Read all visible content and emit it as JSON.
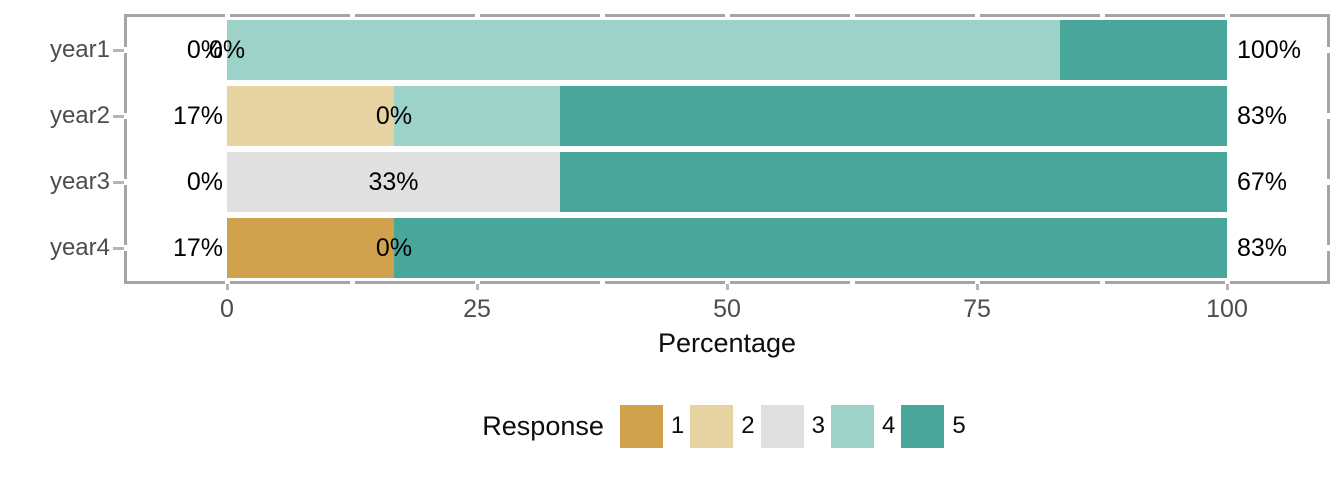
{
  "chart_data": {
    "type": "bar",
    "orientation": "horizontal",
    "stacked": true,
    "xlabel": "Percentage",
    "ylabel": "",
    "xlim": [
      0,
      100
    ],
    "grid": false,
    "x_ticks": [
      {
        "label": "0",
        "value": 0
      },
      {
        "label": "25",
        "value": 25
      },
      {
        "label": "50",
        "value": 50
      },
      {
        "label": "75",
        "value": 75
      },
      {
        "label": "100",
        "value": 100
      }
    ],
    "categories": [
      "year1",
      "year2",
      "year3",
      "year4"
    ],
    "legend": {
      "title": "Response",
      "position": "bottom",
      "entries": [
        {
          "label": "1",
          "color": "#d0a24d"
        },
        {
          "label": "2",
          "color": "#e7d3a2"
        },
        {
          "label": "3",
          "color": "#e0e0e0"
        },
        {
          "label": "4",
          "color": "#9cd2c8"
        },
        {
          "label": "5",
          "color": "#48a69b"
        }
      ]
    },
    "rows": [
      {
        "category": "year1",
        "segments": [
          {
            "response": "4",
            "value": 83.3
          },
          {
            "response": "5",
            "value": 16.7
          }
        ],
        "label_low": "0%",
        "label_neutral": "0%",
        "label_high": "100%"
      },
      {
        "category": "year2",
        "segments": [
          {
            "response": "2",
            "value": 16.7
          },
          {
            "response": "4",
            "value": 16.6
          },
          {
            "response": "5",
            "value": 66.7
          }
        ],
        "label_low": "17%",
        "label_neutral": "0%",
        "label_high": "83%"
      },
      {
        "category": "year3",
        "segments": [
          {
            "response": "3",
            "value": 33.3
          },
          {
            "response": "5",
            "value": 66.7
          }
        ],
        "label_low": "0%",
        "label_neutral": "33%",
        "label_high": "67%"
      },
      {
        "category": "year4",
        "segments": [
          {
            "response": "1",
            "value": 16.7
          },
          {
            "response": "5",
            "value": 83.3
          }
        ],
        "label_low": "17%",
        "label_neutral": "0%",
        "label_high": "83%"
      }
    ],
    "colors": {
      "panel_border": "#a4a4a4",
      "tick": "#b5b5b5",
      "axis_text": "#4d4d4d",
      "label_text": "#000000"
    }
  }
}
